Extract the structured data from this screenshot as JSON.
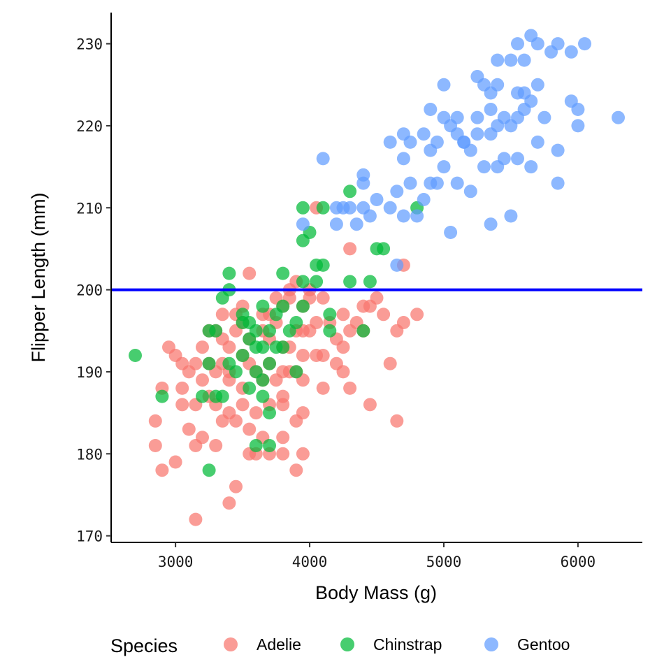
{
  "chart_data": {
    "type": "scatter",
    "title": "",
    "xlabel": "Body Mass (g)",
    "ylabel": "Flipper Length (mm)",
    "xlim": [
      2520,
      6480
    ],
    "ylim": [
      169.2,
      233.8
    ],
    "xticks": [
      3000,
      4000,
      5000,
      6000
    ],
    "yticks": [
      170,
      180,
      190,
      200,
      210,
      220,
      230
    ],
    "grid": false,
    "legend": {
      "title": "Species",
      "position": "bottom"
    },
    "reference_line": {
      "orientation": "horizontal",
      "y": 200,
      "color": "#0000ff"
    },
    "series": [
      {
        "name": "Adelie",
        "color": "#f8766d",
        "points": [
          [
            3150,
            172
          ],
          [
            3400,
            174
          ],
          [
            3450,
            176
          ],
          [
            2900,
            178
          ],
          [
            3000,
            179
          ],
          [
            3900,
            178
          ],
          [
            2850,
            181
          ],
          [
            3150,
            181
          ],
          [
            3300,
            181
          ],
          [
            3550,
            180
          ],
          [
            3600,
            180
          ],
          [
            3700,
            180
          ],
          [
            3800,
            180
          ],
          [
            3950,
            180
          ],
          [
            2850,
            184
          ],
          [
            3100,
            183
          ],
          [
            3200,
            182
          ],
          [
            3350,
            184
          ],
          [
            3450,
            184
          ],
          [
            3550,
            183
          ],
          [
            3650,
            182
          ],
          [
            3800,
            182
          ],
          [
            3900,
            184
          ],
          [
            4650,
            184
          ],
          [
            3050,
            186
          ],
          [
            3150,
            186
          ],
          [
            3250,
            187
          ],
          [
            3300,
            186
          ],
          [
            3400,
            185
          ],
          [
            3500,
            186
          ],
          [
            3600,
            185
          ],
          [
            3700,
            186
          ],
          [
            3800,
            186
          ],
          [
            3950,
            185
          ],
          [
            4450,
            186
          ],
          [
            2900,
            188
          ],
          [
            3050,
            188
          ],
          [
            3200,
            189
          ],
          [
            3300,
            190
          ],
          [
            3400,
            189
          ],
          [
            3500,
            188
          ],
          [
            3600,
            190
          ],
          [
            3650,
            189
          ],
          [
            3750,
            189
          ],
          [
            3800,
            187
          ],
          [
            3850,
            190
          ],
          [
            3950,
            189
          ],
          [
            4100,
            188
          ],
          [
            4300,
            188
          ],
          [
            2950,
            193
          ],
          [
            3000,
            192
          ],
          [
            3050,
            191
          ],
          [
            3100,
            190
          ],
          [
            3150,
            191
          ],
          [
            3200,
            193
          ],
          [
            3250,
            191
          ],
          [
            3350,
            191
          ],
          [
            3400,
            190
          ],
          [
            3500,
            192
          ],
          [
            3550,
            191
          ],
          [
            3700,
            191
          ],
          [
            3800,
            190
          ],
          [
            3900,
            190
          ],
          [
            3950,
            192
          ],
          [
            4050,
            192
          ],
          [
            4100,
            192
          ],
          [
            4200,
            191
          ],
          [
            4250,
            190
          ],
          [
            4600,
            191
          ],
          [
            3250,
            195
          ],
          [
            3300,
            195
          ],
          [
            3350,
            194
          ],
          [
            3400,
            193
          ],
          [
            3450,
            195
          ],
          [
            3500,
            196
          ],
          [
            3550,
            194
          ],
          [
            3650,
            195
          ],
          [
            3700,
            194
          ],
          [
            3750,
            196
          ],
          [
            3800,
            193
          ],
          [
            3850,
            193
          ],
          [
            3900,
            195
          ],
          [
            3950,
            195
          ],
          [
            4000,
            195
          ],
          [
            4050,
            196
          ],
          [
            4150,
            196
          ],
          [
            4200,
            194
          ],
          [
            4250,
            193
          ],
          [
            4300,
            195
          ],
          [
            4350,
            196
          ],
          [
            4400,
            195
          ],
          [
            4650,
            195
          ],
          [
            3350,
            197
          ],
          [
            3450,
            197
          ],
          [
            3500,
            198
          ],
          [
            3650,
            197
          ],
          [
            3700,
            197
          ],
          [
            3750,
            199
          ],
          [
            3800,
            198
          ],
          [
            3850,
            199
          ],
          [
            3950,
            198
          ],
          [
            4000,
            199
          ],
          [
            4100,
            199
          ],
          [
            4250,
            197
          ],
          [
            4400,
            198
          ],
          [
            4450,
            198
          ],
          [
            4500,
            199
          ],
          [
            4550,
            197
          ],
          [
            4700,
            196
          ],
          [
            4800,
            197
          ],
          [
            3550,
            202
          ],
          [
            3850,
            200
          ],
          [
            3900,
            201
          ],
          [
            4000,
            200
          ],
          [
            4300,
            205
          ],
          [
            4700,
            203
          ],
          [
            4050,
            210
          ]
        ]
      },
      {
        "name": "Chinstrap",
        "color": "#00ba38",
        "points": [
          [
            2700,
            192
          ],
          [
            2900,
            187
          ],
          [
            3250,
            178
          ],
          [
            3200,
            187
          ],
          [
            3300,
            187
          ],
          [
            3350,
            187
          ],
          [
            3600,
            181
          ],
          [
            3700,
            181
          ],
          [
            3700,
            185
          ],
          [
            3650,
            187
          ],
          [
            3250,
            191
          ],
          [
            3450,
            190
          ],
          [
            3550,
            188
          ],
          [
            3600,
            190
          ],
          [
            3650,
            189
          ],
          [
            3700,
            191
          ],
          [
            3900,
            190
          ],
          [
            3300,
            195
          ],
          [
            3400,
            191
          ],
          [
            3500,
            192
          ],
          [
            3550,
            194
          ],
          [
            3600,
            193
          ],
          [
            3650,
            193
          ],
          [
            3750,
            193
          ],
          [
            3800,
            193
          ],
          [
            3250,
            195
          ],
          [
            3500,
            196
          ],
          [
            3550,
            196
          ],
          [
            3600,
            195
          ],
          [
            3700,
            195
          ],
          [
            3850,
            195
          ],
          [
            3900,
            196
          ],
          [
            3950,
            198
          ],
          [
            4150,
            195
          ],
          [
            4400,
            195
          ],
          [
            3350,
            199
          ],
          [
            3400,
            200
          ],
          [
            3500,
            197
          ],
          [
            3650,
            198
          ],
          [
            3750,
            197
          ],
          [
            3800,
            198
          ],
          [
            4150,
            197
          ],
          [
            3400,
            202
          ],
          [
            3800,
            202
          ],
          [
            3950,
            201
          ],
          [
            4050,
            201
          ],
          [
            4300,
            201
          ],
          [
            4450,
            201
          ],
          [
            3950,
            206
          ],
          [
            4050,
            203
          ],
          [
            4100,
            203
          ],
          [
            4500,
            205
          ],
          [
            4550,
            205
          ],
          [
            3950,
            210
          ],
          [
            4000,
            207
          ],
          [
            4100,
            210
          ],
          [
            4300,
            212
          ],
          [
            4800,
            210
          ]
        ]
      },
      {
        "name": "Gentoo",
        "color": "#619cff",
        "points": [
          [
            4100,
            216
          ],
          [
            3950,
            208
          ],
          [
            4200,
            210
          ],
          [
            4250,
            210
          ],
          [
            4200,
            208
          ],
          [
            4300,
            210
          ],
          [
            4350,
            208
          ],
          [
            4400,
            210
          ],
          [
            4450,
            209
          ],
          [
            4500,
            211
          ],
          [
            4600,
            210
          ],
          [
            4700,
            209
          ],
          [
            4800,
            209
          ],
          [
            4650,
            203
          ],
          [
            4400,
            214
          ],
          [
            4400,
            213
          ],
          [
            4600,
            218
          ],
          [
            4650,
            212
          ],
          [
            4700,
            216
          ],
          [
            4750,
            213
          ],
          [
            4850,
            211
          ],
          [
            4900,
            213
          ],
          [
            4950,
            213
          ],
          [
            5000,
            215
          ],
          [
            5050,
            207
          ],
          [
            5100,
            213
          ],
          [
            5200,
            212
          ],
          [
            5350,
            208
          ],
          [
            5500,
            209
          ],
          [
            4700,
            219
          ],
          [
            4750,
            218
          ],
          [
            4850,
            219
          ],
          [
            4900,
            217
          ],
          [
            4950,
            218
          ],
          [
            5000,
            221
          ],
          [
            5050,
            220
          ],
          [
            5100,
            219
          ],
          [
            5150,
            218
          ],
          [
            5200,
            217
          ],
          [
            5250,
            219
          ],
          [
            5300,
            215
          ],
          [
            5350,
            219
          ],
          [
            5400,
            215
          ],
          [
            5450,
            216
          ],
          [
            5550,
            216
          ],
          [
            5650,
            215
          ],
          [
            5700,
            218
          ],
          [
            5850,
            217
          ],
          [
            5850,
            213
          ],
          [
            4900,
            222
          ],
          [
            5000,
            225
          ],
          [
            5100,
            221
          ],
          [
            5150,
            218
          ],
          [
            5250,
            221
          ],
          [
            5300,
            225
          ],
          [
            5350,
            222
          ],
          [
            5400,
            220
          ],
          [
            5450,
            221
          ],
          [
            5500,
            220
          ],
          [
            5550,
            221
          ],
          [
            5600,
            224
          ],
          [
            5650,
            223
          ],
          [
            5750,
            221
          ],
          [
            5950,
            223
          ],
          [
            6000,
            222
          ],
          [
            6000,
            220
          ],
          [
            6300,
            221
          ],
          [
            5250,
            226
          ],
          [
            5350,
            224
          ],
          [
            5400,
            225
          ],
          [
            5550,
            224
          ],
          [
            5600,
            222
          ],
          [
            5700,
            225
          ],
          [
            5400,
            228
          ],
          [
            5500,
            228
          ],
          [
            5550,
            230
          ],
          [
            5600,
            228
          ],
          [
            5650,
            231
          ],
          [
            5700,
            230
          ],
          [
            5800,
            229
          ],
          [
            5850,
            230
          ],
          [
            5950,
            229
          ],
          [
            6050,
            230
          ]
        ]
      }
    ]
  }
}
